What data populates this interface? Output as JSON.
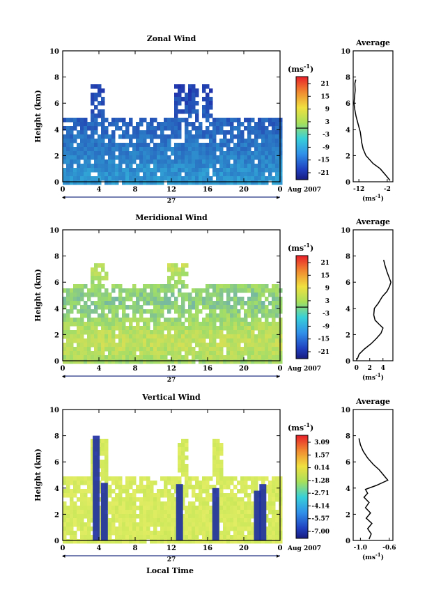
{
  "figure": {
    "x_axis_label": "Local Time",
    "date_label": "Aug 2007",
    "day_label": "27",
    "unit_label": "(ms",
    "unit_exp": "-1",
    "unit_close": ")"
  },
  "chart_data": [
    {
      "type": "heatmap",
      "title": "Zonal Wind",
      "ylabel": "Height (km)",
      "x_ticks": [
        "0",
        "4",
        "8",
        "12",
        "16",
        "20",
        "0"
      ],
      "y_ticks": [
        "0",
        "2",
        "4",
        "6",
        "8",
        "10"
      ],
      "xlim": [
        0,
        24
      ],
      "ylim": [
        0,
        10
      ],
      "colorbar_ticks": [
        "21",
        "15",
        "9",
        "3",
        "-3",
        "-9",
        "-15",
        "-21"
      ],
      "colorbar_range": [
        -24,
        24
      ],
      "colors": {
        "low": "#1f2aa8",
        "mid": "#35c0e0",
        "high": "#d22a1e"
      },
      "profile": {
        "title": "Average",
        "x_ticks": [
          "-12",
          "-2"
        ],
        "xlim": [
          -14,
          0
        ],
        "points": [
          [
            -1,
            0.1
          ],
          [
            -2.5,
            0.5
          ],
          [
            -4.5,
            1.0
          ],
          [
            -7,
            1.4
          ],
          [
            -9.5,
            2.0
          ],
          [
            -10.5,
            2.5
          ],
          [
            -11,
            3.0
          ],
          [
            -11.3,
            3.5
          ],
          [
            -11.5,
            3.8
          ],
          [
            -12,
            4.2
          ],
          [
            -12.5,
            4.6
          ],
          [
            -13,
            5.0
          ],
          [
            -13.5,
            5.6
          ],
          [
            -13.7,
            6.0
          ],
          [
            -13.5,
            6.5
          ],
          [
            -13.3,
            7.0
          ],
          [
            -13.4,
            7.5
          ],
          [
            -13.1,
            7.8
          ]
        ]
      }
    },
    {
      "type": "heatmap",
      "title": "Meridional Wind",
      "ylabel": "Height (km)",
      "x_ticks": [
        "0",
        "4",
        "8",
        "12",
        "16",
        "20",
        "0"
      ],
      "y_ticks": [
        "0",
        "2",
        "4",
        "6",
        "8",
        "10"
      ],
      "xlim": [
        0,
        24
      ],
      "ylim": [
        0,
        10
      ],
      "colorbar_ticks": [
        "21",
        "15",
        "9",
        "3",
        "-3",
        "-9",
        "-15",
        "-21"
      ],
      "colorbar_range": [
        -24,
        24
      ],
      "colors": {
        "low": "#4a8fe0",
        "mid": "#9cdc6a",
        "high": "#f0e24a"
      },
      "profile": {
        "title": "Average",
        "x_ticks": [
          "0",
          "2",
          "4"
        ],
        "xlim": [
          -0.5,
          5.5
        ],
        "points": [
          [
            0.1,
            0.1
          ],
          [
            0.4,
            0.5
          ],
          [
            1.2,
            0.9
          ],
          [
            2.2,
            1.3
          ],
          [
            3.0,
            1.7
          ],
          [
            3.7,
            2.1
          ],
          [
            4.0,
            2.5
          ],
          [
            3.4,
            2.8
          ],
          [
            2.8,
            3.1
          ],
          [
            2.6,
            3.5
          ],
          [
            2.7,
            4.0
          ],
          [
            3.3,
            4.4
          ],
          [
            3.9,
            4.9
          ],
          [
            4.6,
            5.3
          ],
          [
            5.0,
            5.7
          ],
          [
            5.2,
            6.0
          ],
          [
            4.9,
            6.4
          ],
          [
            4.6,
            6.8
          ],
          [
            4.3,
            7.3
          ],
          [
            4.1,
            7.7
          ]
        ]
      }
    },
    {
      "type": "heatmap",
      "title": "Vertical Wind",
      "ylabel": "Height (km)",
      "x_ticks": [
        "0",
        "4",
        "8",
        "12",
        "16",
        "20",
        "0"
      ],
      "y_ticks": [
        "0",
        "2",
        "4",
        "6",
        "8",
        "10"
      ],
      "xlim": [
        0,
        24
      ],
      "ylim": [
        0,
        10
      ],
      "colorbar_ticks": [
        "3.09",
        "1.57",
        "0.14",
        "-1.28",
        "-2.71",
        "-4.14",
        "-5.57",
        "-7.00"
      ],
      "colorbar_range": [
        -7.7,
        3.8
      ],
      "colors": {
        "low": "#1b2ca0",
        "mid": "#cbe85a",
        "high": "#e8412a"
      },
      "profile": {
        "title": "Average",
        "x_ticks": [
          "-1.0",
          "-0.6"
        ],
        "xlim": [
          -1.1,
          -0.55
        ],
        "points": [
          [
            -0.88,
            0.1
          ],
          [
            -0.85,
            0.5
          ],
          [
            -0.9,
            0.9
          ],
          [
            -0.84,
            1.3
          ],
          [
            -0.92,
            1.7
          ],
          [
            -0.86,
            2.1
          ],
          [
            -0.93,
            2.5
          ],
          [
            -0.88,
            2.9
          ],
          [
            -0.95,
            3.3
          ],
          [
            -0.9,
            3.6
          ],
          [
            -0.93,
            3.9
          ],
          [
            -0.78,
            4.2
          ],
          [
            -0.62,
            4.6
          ],
          [
            -0.68,
            5.0
          ],
          [
            -0.74,
            5.4
          ],
          [
            -0.82,
            5.8
          ],
          [
            -0.9,
            6.3
          ],
          [
            -0.96,
            6.8
          ],
          [
            -1.0,
            7.3
          ],
          [
            -1.02,
            7.8
          ]
        ]
      }
    }
  ]
}
